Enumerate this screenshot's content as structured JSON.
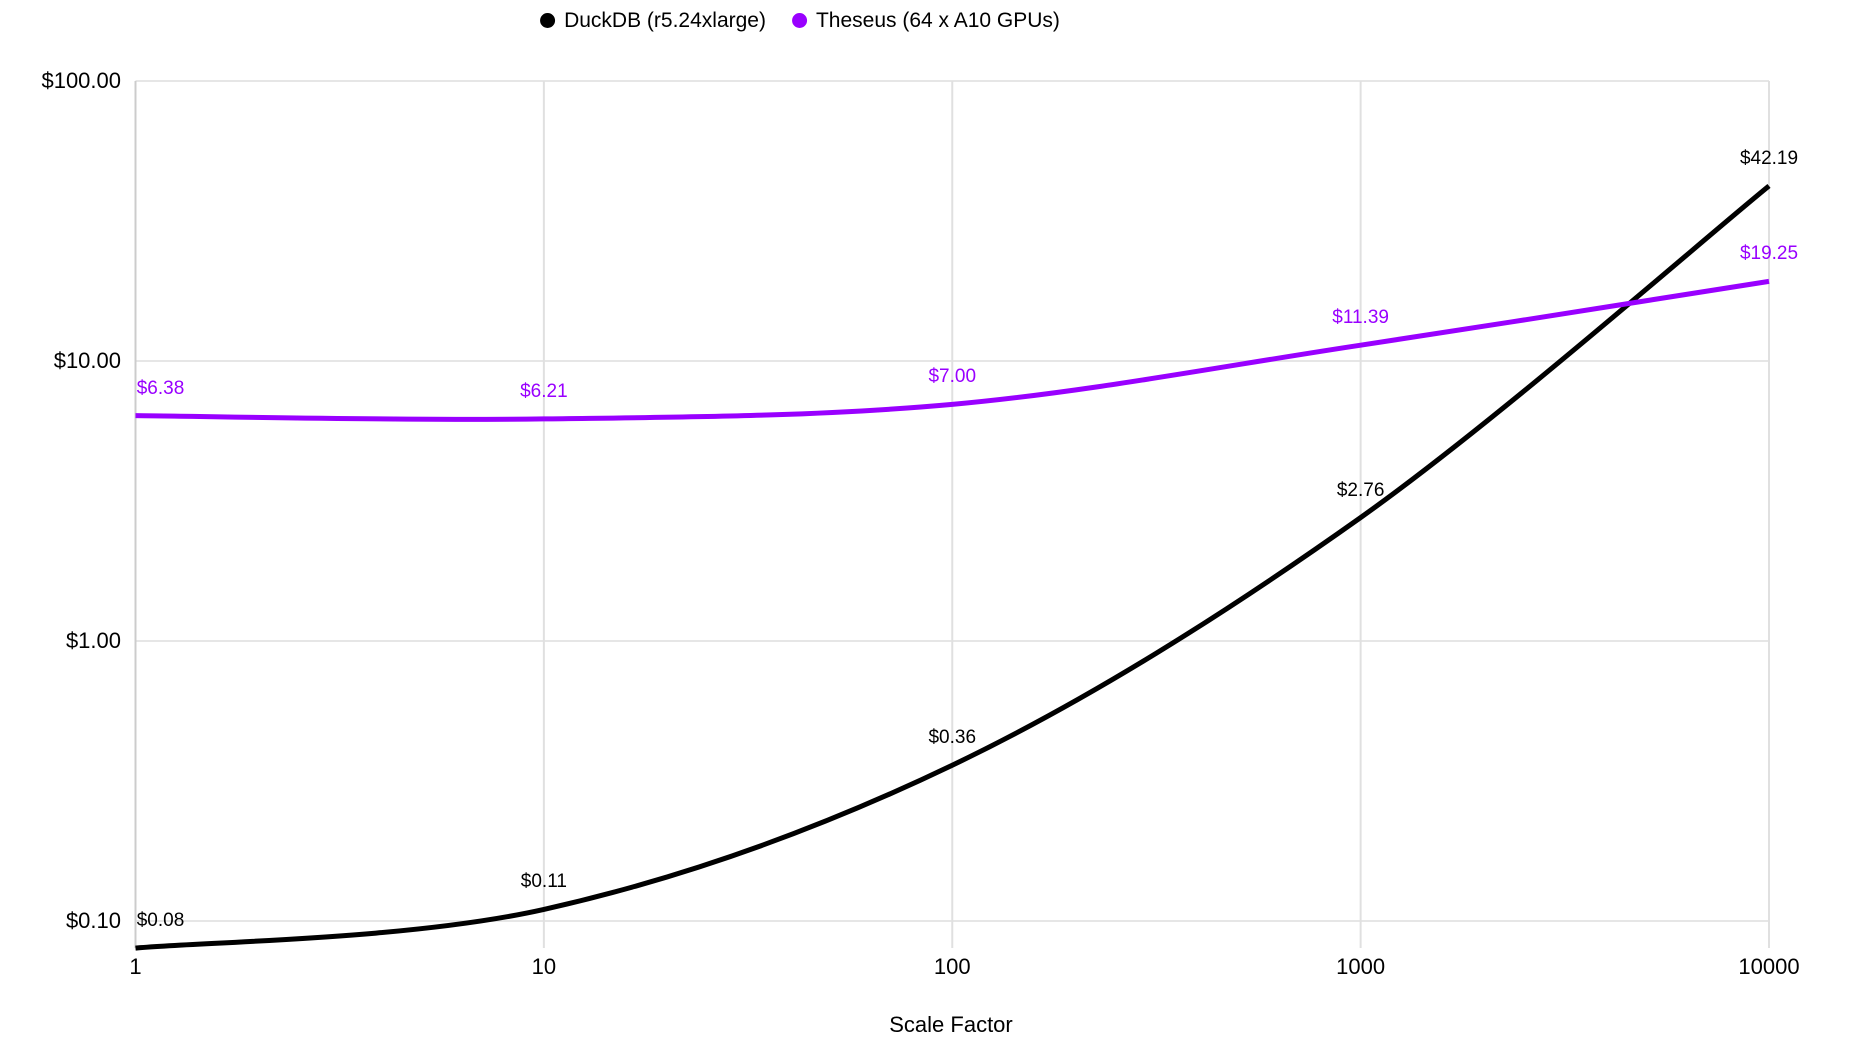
{
  "legend": {
    "items": [
      {
        "label": "DuckDB (r5.24xlarge)",
        "color": "#000000"
      },
      {
        "label": "Theseus (64 x A10 GPUs)",
        "color": "#9900ff"
      }
    ]
  },
  "chart_data": {
    "type": "line",
    "title": "",
    "xlabel": "Scale Factor",
    "ylabel": "",
    "x_scale": "log",
    "y_scale": "log",
    "grid": true,
    "legend_position": "top",
    "x": [
      1,
      10,
      100,
      1000,
      10000
    ],
    "x_tick_labels": [
      "1",
      "10",
      "100",
      "1000",
      "10000"
    ],
    "x_range": [
      1,
      10000
    ],
    "y_ticks": [
      100,
      10,
      1,
      0.1
    ],
    "y_tick_labels": [
      "$100.00",
      "$10.00",
      "$1.00",
      "$0.10"
    ],
    "y_range": [
      0.08,
      100
    ],
    "series": [
      {
        "name": "DuckDB (r5.24xlarge)",
        "color": "#000000",
        "values": [
          0.08,
          0.11,
          0.36,
          2.76,
          42.19
        ],
        "point_labels": [
          "$0.08",
          "$0.11",
          "$0.36",
          "$2.76",
          "$42.19"
        ]
      },
      {
        "name": "Theseus (64 x A10 GPUs)",
        "color": "#9900ff",
        "values": [
          6.38,
          6.21,
          7.0,
          11.39,
          19.25
        ],
        "point_labels": [
          "$6.38",
          "$6.21",
          "$7.00",
          "$11.39",
          "$19.25"
        ]
      }
    ]
  },
  "colors": {
    "background": "#ffffff",
    "gridline": "#e6e6e6",
    "axis_line": "#cccccc",
    "tick_text": "#000000"
  }
}
